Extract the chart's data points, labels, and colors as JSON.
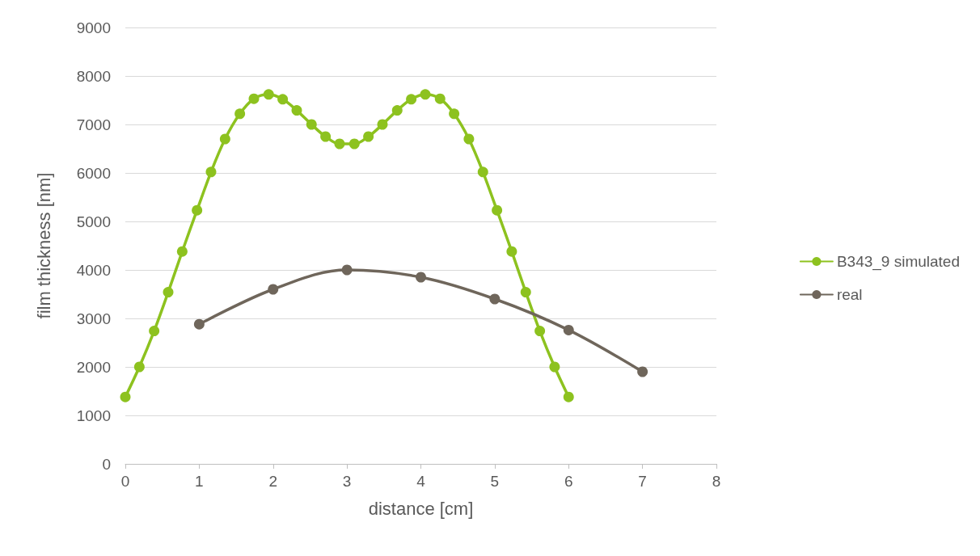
{
  "chart_data": {
    "type": "line",
    "xlabel": "distance [cm]",
    "ylabel": "film thickness [nm]",
    "xlim": [
      0,
      8
    ],
    "xticks": [
      0,
      1,
      2,
      3,
      4,
      5,
      6,
      7,
      8
    ],
    "ylim": [
      0,
      9000
    ],
    "yticks": [
      0,
      1000,
      2000,
      3000,
      4000,
      5000,
      6000,
      7000,
      8000,
      9000
    ],
    "grid": "y",
    "legend": "right",
    "marker": "circle",
    "series": [
      {
        "name": "B343_9 simulated",
        "color": "#8dc21f",
        "x": [
          0,
          0.19,
          0.39,
          0.58,
          0.77,
          0.97,
          1.16,
          1.35,
          1.55,
          1.74,
          1.94,
          2.13,
          2.32,
          2.52,
          2.71,
          2.9,
          3.1,
          3.29,
          3.48,
          3.68,
          3.87,
          4.06,
          4.26,
          4.45,
          4.65,
          4.84,
          5.03,
          5.23,
          5.42,
          5.61,
          5.81,
          6
        ],
        "values": [
          1380,
          2000,
          2740,
          3540,
          4380,
          5230,
          6020,
          6700,
          7220,
          7530,
          7620,
          7520,
          7290,
          7000,
          6750,
          6600,
          6600,
          6750,
          7000,
          7290,
          7520,
          7620,
          7530,
          7220,
          6700,
          6020,
          5230,
          4380,
          3540,
          2740,
          2000,
          1380
        ]
      },
      {
        "name": "real",
        "color": "#6f665b",
        "x": [
          1,
          2,
          3,
          4,
          5,
          6,
          7
        ],
        "values": [
          2880,
          3600,
          4000,
          3850,
          3400,
          2760,
          1900
        ]
      }
    ]
  }
}
